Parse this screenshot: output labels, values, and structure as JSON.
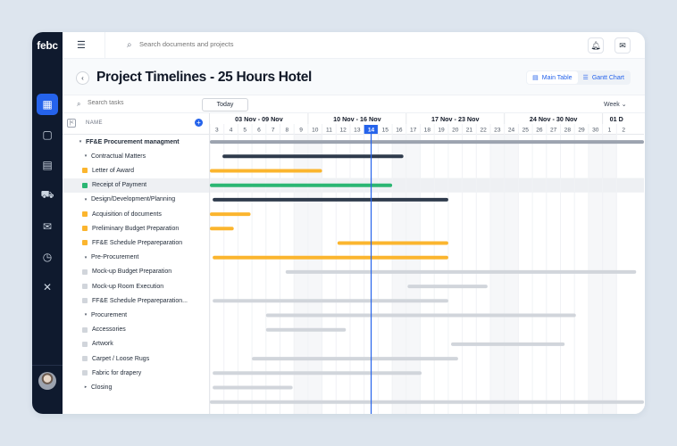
{
  "logo": "febc",
  "sidebar": {
    "items": [
      {
        "name": "dashboard-icon",
        "glyph": "▦",
        "active": true
      },
      {
        "name": "document-icon",
        "glyph": "▢",
        "active": false
      },
      {
        "name": "calendar-icon",
        "glyph": "▤",
        "active": false
      },
      {
        "name": "truck-icon",
        "glyph": "⛟",
        "active": false
      },
      {
        "name": "mail-icon",
        "glyph": "✉",
        "active": false
      },
      {
        "name": "clock-icon",
        "glyph": "◷",
        "active": false
      },
      {
        "name": "tools-icon",
        "glyph": "✕",
        "active": false
      }
    ]
  },
  "topbar": {
    "search_placeholder": "Search documents and projects"
  },
  "page": {
    "title": "Project Timelines - 25 Hours Hotel",
    "views": [
      {
        "label": "Main Table",
        "icon": "table-icon",
        "selected": true
      },
      {
        "label": "Gantt Chart",
        "icon": "gantt-icon",
        "selected": false
      }
    ]
  },
  "toolbar": {
    "task_search_placeholder": "Search tasks",
    "today_label": "Today",
    "scale_label": "Week ⌄"
  },
  "columns": {
    "name_header": "NAME"
  },
  "colors": {
    "accent": "#2563eb",
    "orange": "#fbb52e",
    "green": "#2bb673",
    "dark": "#2f3b4c",
    "gray_bar": "#9ca3af",
    "light_bar": "#d1d5db"
  },
  "timeline": {
    "weeks": [
      {
        "label": "03 Nov - 09 Nov"
      },
      {
        "label": "10 Nov - 16 Nov"
      },
      {
        "label": "17 Nov - 23 Nov"
      },
      {
        "label": "24 Nov - 30 Nov"
      },
      {
        "label": "01 D"
      }
    ],
    "days": [
      "3",
      "4",
      "5",
      "6",
      "7",
      "8",
      "9",
      "10",
      "11",
      "12",
      "13",
      "14",
      "15",
      "16",
      "17",
      "18",
      "19",
      "20",
      "21",
      "22",
      "23",
      "24",
      "25",
      "26",
      "27",
      "28",
      "29",
      "30",
      "1",
      "2"
    ],
    "today_day": "14",
    "weekend_days": [
      "9",
      "10",
      "16",
      "17",
      "23",
      "24",
      "30",
      "1"
    ]
  },
  "tasks": [
    {
      "label": "FF&E Procurement managment",
      "level": 0,
      "caret": "▾",
      "marker": "",
      "bar": {
        "start": 0,
        "end": 32,
        "color": "gray"
      }
    },
    {
      "label": "Contractual Matters",
      "level": 1,
      "caret": "▾",
      "marker": "",
      "bar": {
        "start": 0.9,
        "end": 13.8,
        "color": "dark"
      }
    },
    {
      "label": "Letter of Award",
      "level": 1,
      "caret": "",
      "marker": "orange",
      "bar": {
        "start": 0,
        "end": 8,
        "color": "orange"
      }
    },
    {
      "label": "Receipt of Payment",
      "level": 1,
      "caret": "",
      "marker": "green",
      "bar": {
        "start": 0,
        "end": 13,
        "color": "green"
      },
      "highlight": true
    },
    {
      "label": "Design/Development/Planning",
      "level": 1,
      "caret": "▾",
      "marker": "",
      "bar": {
        "start": 0.2,
        "end": 17,
        "color": "dark"
      }
    },
    {
      "label": "Acquisition of documents",
      "level": 1,
      "caret": "",
      "marker": "orange",
      "bar": {
        "start": 0,
        "end": 2.9,
        "color": "orange"
      }
    },
    {
      "label": "Preliminary Budget Preparation",
      "level": 1,
      "caret": "",
      "marker": "orange",
      "bar": {
        "start": 0,
        "end": 1.7,
        "color": "orange"
      }
    },
    {
      "label": "FF&E Schedule Prepareparation",
      "level": 1,
      "caret": "",
      "marker": "orange",
      "bar": {
        "start": 9.1,
        "end": 17,
        "color": "orange"
      }
    },
    {
      "label": "Pre-Procurement",
      "level": 1,
      "caret": "▾",
      "marker": "",
      "bar": {
        "start": 0.2,
        "end": 17,
        "color": "orange"
      }
    },
    {
      "label": "Mock-up Budget Preparation",
      "level": 1,
      "caret": "",
      "marker": "light",
      "bar": {
        "start": 5.4,
        "end": 30.4,
        "color": "light"
      }
    },
    {
      "label": "Mock-up Room Execution",
      "level": 1,
      "caret": "",
      "marker": "light",
      "bar": {
        "start": 14.1,
        "end": 19.8,
        "color": "light"
      }
    },
    {
      "label": "FF&E Schedule Prepareparation...",
      "level": 1,
      "caret": "",
      "marker": "light",
      "bar": {
        "start": 0.2,
        "end": 17,
        "color": "light"
      }
    },
    {
      "label": "Procurement",
      "level": 1,
      "caret": "▾",
      "marker": "",
      "bar": {
        "start": 4,
        "end": 26.1,
        "color": "light"
      }
    },
    {
      "label": "Accessories",
      "level": 1,
      "caret": "",
      "marker": "light",
      "bar": {
        "start": 4,
        "end": 9.7,
        "color": "light"
      }
    },
    {
      "label": "Artwork",
      "level": 1,
      "caret": "",
      "marker": "light",
      "bar": {
        "start": 17.2,
        "end": 25.3,
        "color": "light"
      }
    },
    {
      "label": "Carpet / Loose Rugs",
      "level": 1,
      "caret": "",
      "marker": "light",
      "bar": {
        "start": 3,
        "end": 17.7,
        "color": "light"
      }
    },
    {
      "label": "Fabric for drapery",
      "level": 1,
      "caret": "",
      "marker": "light",
      "bar": {
        "start": 0.2,
        "end": 15.1,
        "color": "light"
      }
    },
    {
      "label": "Closing",
      "level": 1,
      "caret": "▸",
      "marker": "",
      "bar": {
        "start": 0.2,
        "end": 5.9,
        "color": "light"
      }
    },
    {
      "label": "",
      "level": 0,
      "caret": "",
      "marker": "",
      "bar": {
        "start": 0,
        "end": 32,
        "color": "light"
      }
    }
  ]
}
